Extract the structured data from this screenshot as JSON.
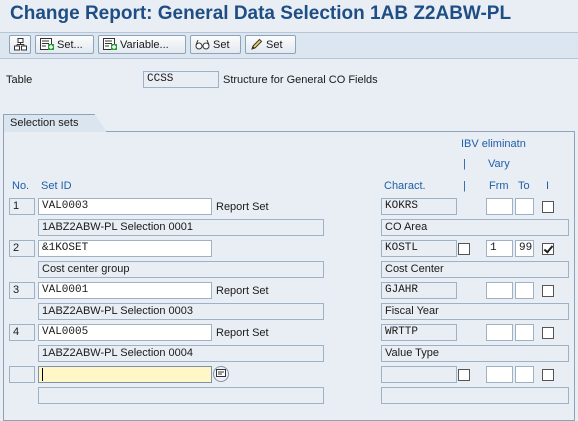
{
  "title": "Change Report: General Data Selection 1AB Z2ABW-PL",
  "toolbar": {
    "icon1": "hierarchy-icon",
    "set_label": "Set...",
    "variable_label": "Variable...",
    "set2_label": "Set",
    "set3_label": "Set"
  },
  "table": {
    "label": "Table",
    "value": "CCSS",
    "description": "Structure for General CO Fields"
  },
  "section_title": "Selection sets",
  "headers": {
    "ibv": "IBV eliminatn",
    "bar1": "|",
    "vary": "Vary",
    "no": "No.",
    "set_id": "Set ID",
    "charact": "Charact.",
    "bar2": "|",
    "frm": "Frm",
    "to": "To",
    "i": "I"
  },
  "rows": [
    {
      "no": "1",
      "set_id": "VAL0003",
      "type": "Report Set",
      "desc": "1ABZ2ABW-PL Selection    0001",
      "charact": "KOKRS",
      "charact_desc": "CO Area",
      "ibv": null,
      "frm": "",
      "to": "",
      "i": false
    },
    {
      "no": "2",
      "set_id": "&1KOSET",
      "type": "",
      "desc": "Cost center group",
      "charact": "KOSTL",
      "charact_desc": "Cost Center",
      "ibv": false,
      "frm": "1",
      "to": "99",
      "i": true
    },
    {
      "no": "3",
      "set_id": "VAL0001",
      "type": "Report Set",
      "desc": "1ABZ2ABW-PL Selection    0003",
      "charact": "GJAHR",
      "charact_desc": "Fiscal Year",
      "ibv": null,
      "frm": "",
      "to": "",
      "i": false
    },
    {
      "no": "4",
      "set_id": "VAL0005",
      "type": "Report Set",
      "desc": "1ABZ2ABW-PL Selection    0004",
      "charact": "WRTTP",
      "charact_desc": "Value Type",
      "ibv": null,
      "frm": "",
      "to": "",
      "i": false
    },
    {
      "no": "",
      "set_id": "",
      "type": "",
      "desc": "",
      "charact": "",
      "charact_desc": "",
      "ibv": false,
      "frm": "",
      "to": "",
      "i": false
    }
  ]
}
